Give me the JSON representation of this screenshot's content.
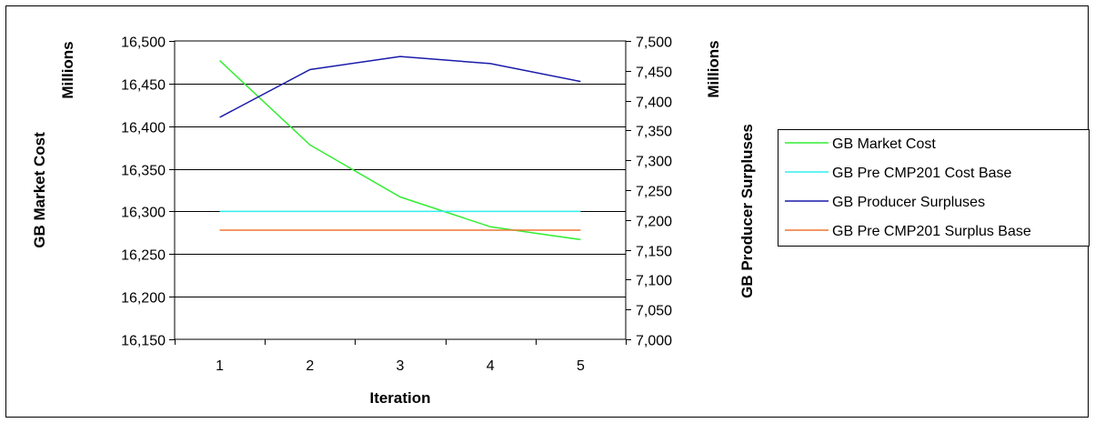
{
  "chart_data": {
    "type": "line",
    "categories": [
      "1",
      "2",
      "3",
      "4",
      "5"
    ],
    "xlabel": "Iteration",
    "y_left": {
      "label": "GB Market Cost",
      "unit_label": "Millions",
      "range": [
        16150,
        16500
      ],
      "ticks": [
        "16,150",
        "16,200",
        "16,250",
        "16,300",
        "16,350",
        "16,400",
        "16,450",
        "16,500"
      ]
    },
    "y_right": {
      "label": "GB Producer Surpluses",
      "unit_label": "Millions",
      "range": [
        7000,
        7500
      ],
      "ticks": [
        "7,000",
        "7,050",
        "7,100",
        "7,150",
        "7,200",
        "7,250",
        "7,300",
        "7,350",
        "7,400",
        "7,450",
        "7,500"
      ]
    },
    "grid": true,
    "legend_position": "right",
    "series": [
      {
        "name": "GB Market Cost",
        "axis": "left",
        "color": "#33ee33",
        "values": [
          16477,
          16378,
          16317,
          16282,
          16267
        ]
      },
      {
        "name": "GB Pre CMP201 Cost Base",
        "axis": "left",
        "color": "#33eeee",
        "values": [
          16300,
          16300,
          16300,
          16300,
          16300
        ]
      },
      {
        "name": "GB Producer Surpluses",
        "axis": "right",
        "color": "#1a1aaa",
        "values": [
          7372,
          7452,
          7474,
          7462,
          7432
        ]
      },
      {
        "name": "GB Pre CMP201 Surplus Base",
        "axis": "right",
        "color": "#ee7733",
        "values": [
          7183,
          7183,
          7183,
          7183,
          7183
        ]
      }
    ]
  }
}
